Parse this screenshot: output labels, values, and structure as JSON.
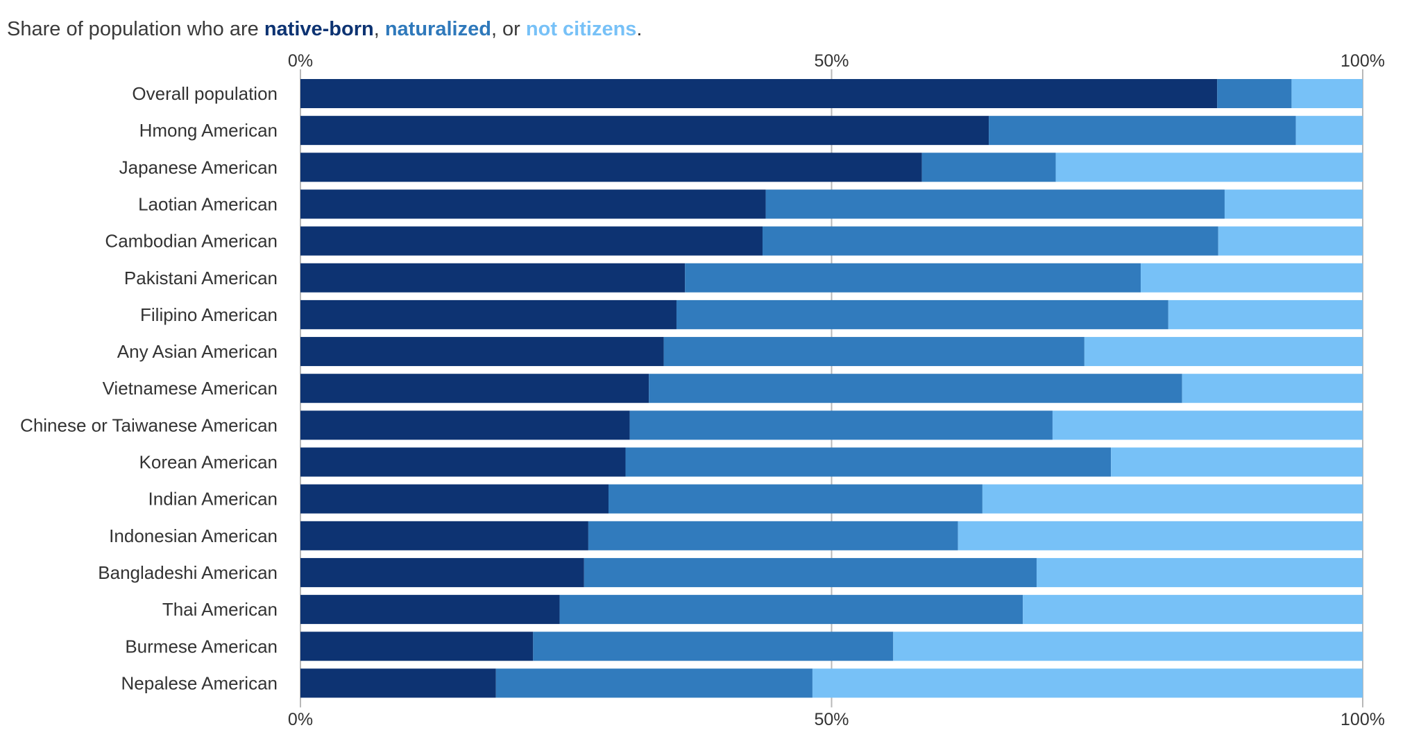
{
  "title": {
    "prefix": "Share of population who are ",
    "native_born": "native-born",
    "sep1": ", ",
    "naturalized": "naturalized",
    "sep2": ", or ",
    "not_citizens": "not citizens",
    "suffix": "."
  },
  "chart_data": {
    "type": "bar",
    "orientation": "horizontal",
    "stacked": true,
    "normalized": true,
    "xlim": [
      0,
      100
    ],
    "x_ticks": [
      "0%",
      "50%",
      "100%"
    ],
    "x_tick_values": [
      0,
      50,
      100
    ],
    "axis_positions": [
      "top",
      "bottom"
    ],
    "grid": true,
    "legend": "inline in title",
    "categories": [
      "Overall population",
      "Hmong American",
      "Japanese American",
      "Laotian American",
      "Cambodian American",
      "Pakistani American",
      "Filipino American",
      "Any Asian American",
      "Vietnamese American",
      "Chinese or Taiwanese American",
      "Korean American",
      "Indian American",
      "Indonesian American",
      "Bangladeshi American",
      "Thai American",
      "Burmese American",
      "Nepalese American"
    ],
    "series": [
      {
        "name": "native-born",
        "color": "#0d3372",
        "values": [
          86.3,
          64.8,
          58.5,
          43.8,
          43.5,
          36.2,
          35.4,
          34.2,
          32.8,
          31.0,
          30.6,
          29.0,
          27.1,
          26.7,
          24.4,
          21.9,
          18.4
        ]
      },
      {
        "name": "naturalized",
        "color": "#317bbd",
        "values": [
          7.0,
          28.9,
          12.6,
          43.2,
          42.9,
          42.9,
          46.3,
          39.6,
          50.2,
          39.8,
          45.7,
          35.2,
          34.8,
          42.6,
          43.6,
          33.9,
          29.8
        ]
      },
      {
        "name": "not citizens",
        "color": "#77c1f7",
        "values": [
          6.7,
          6.3,
          28.9,
          13.0,
          13.6,
          20.9,
          18.3,
          26.2,
          17.0,
          29.2,
          23.7,
          35.8,
          38.1,
          30.7,
          32.0,
          44.2,
          51.8
        ]
      }
    ]
  }
}
